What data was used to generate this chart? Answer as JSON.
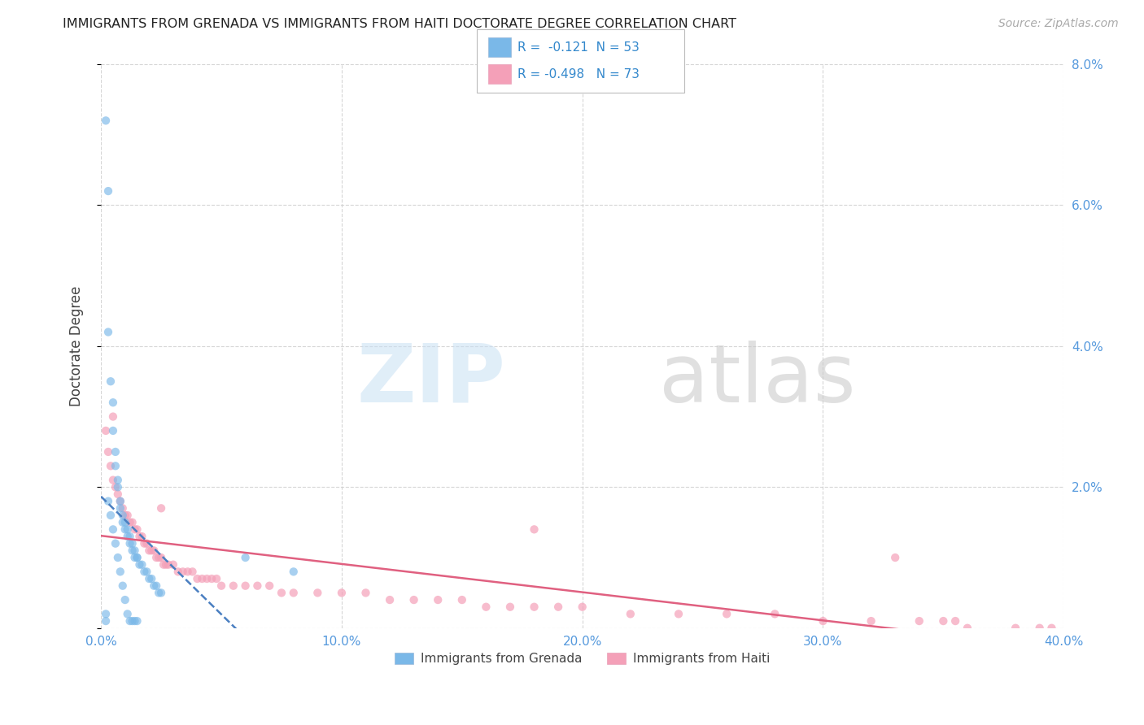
{
  "title": "IMMIGRANTS FROM GRENADA VS IMMIGRANTS FROM HAITI DOCTORATE DEGREE CORRELATION CHART",
  "source": "Source: ZipAtlas.com",
  "ylabel": "Doctorate Degree",
  "xlim": [
    0.0,
    40.0
  ],
  "ylim": [
    0.0,
    8.0
  ],
  "xticks": [
    0.0,
    10.0,
    20.0,
    30.0,
    40.0
  ],
  "yticks": [
    0.0,
    2.0,
    4.0,
    6.0,
    8.0
  ],
  "xtick_labels": [
    "0.0%",
    "10.0%",
    "20.0%",
    "30.0%",
    "40.0%"
  ],
  "ytick_labels": [
    "",
    "2.0%",
    "4.0%",
    "6.0%",
    "8.0%"
  ],
  "grenada_color": "#7ab8e8",
  "haiti_color": "#f4a0b8",
  "grenada_line_color": "#4a7fc1",
  "haiti_line_color": "#e06080",
  "background_color": "#ffffff",
  "grid_color": "#cccccc",
  "grenada_R": -0.121,
  "grenada_N": 53,
  "haiti_R": -0.498,
  "haiti_N": 73,
  "grenada_x": [
    0.2,
    0.3,
    0.3,
    0.4,
    0.5,
    0.5,
    0.6,
    0.6,
    0.7,
    0.7,
    0.8,
    0.8,
    0.9,
    0.9,
    1.0,
    1.0,
    1.1,
    1.1,
    1.2,
    1.2,
    1.3,
    1.3,
    1.4,
    1.4,
    1.5,
    1.5,
    1.6,
    1.7,
    1.8,
    1.9,
    2.0,
    2.1,
    2.2,
    2.3,
    2.4,
    2.5,
    0.3,
    0.4,
    0.5,
    0.6,
    0.7,
    0.8,
    0.9,
    1.0,
    1.1,
    1.2,
    1.3,
    1.4,
    1.5,
    6.0,
    8.0,
    0.2,
    0.2
  ],
  "grenada_y": [
    7.2,
    6.2,
    4.2,
    3.5,
    3.2,
    2.8,
    2.5,
    2.3,
    2.1,
    2.0,
    1.8,
    1.7,
    1.6,
    1.5,
    1.5,
    1.4,
    1.4,
    1.3,
    1.3,
    1.2,
    1.2,
    1.1,
    1.1,
    1.0,
    1.0,
    1.0,
    0.9,
    0.9,
    0.8,
    0.8,
    0.7,
    0.7,
    0.6,
    0.6,
    0.5,
    0.5,
    1.8,
    1.6,
    1.4,
    1.2,
    1.0,
    0.8,
    0.6,
    0.4,
    0.2,
    0.1,
    0.1,
    0.1,
    0.1,
    1.0,
    0.8,
    0.2,
    0.1
  ],
  "haiti_x": [
    0.2,
    0.3,
    0.4,
    0.5,
    0.6,
    0.7,
    0.8,
    0.9,
    1.0,
    1.1,
    1.2,
    1.3,
    1.4,
    1.5,
    1.6,
    1.7,
    1.8,
    1.9,
    2.0,
    2.1,
    2.2,
    2.3,
    2.4,
    2.5,
    2.6,
    2.7,
    2.8,
    3.0,
    3.2,
    3.4,
    3.6,
    3.8,
    4.0,
    4.2,
    4.4,
    4.6,
    4.8,
    5.0,
    5.5,
    6.0,
    6.5,
    7.0,
    7.5,
    8.0,
    9.0,
    10.0,
    11.0,
    12.0,
    13.0,
    14.0,
    15.0,
    16.0,
    17.0,
    18.0,
    19.0,
    20.0,
    22.0,
    24.0,
    26.0,
    28.0,
    30.0,
    32.0,
    34.0,
    35.0,
    35.5,
    36.0,
    38.0,
    39.0,
    39.5,
    0.5,
    2.5,
    18.0,
    33.0
  ],
  "haiti_y": [
    2.8,
    2.5,
    2.3,
    2.1,
    2.0,
    1.9,
    1.8,
    1.7,
    1.6,
    1.6,
    1.5,
    1.5,
    1.4,
    1.4,
    1.3,
    1.3,
    1.2,
    1.2,
    1.1,
    1.1,
    1.1,
    1.0,
    1.0,
    1.0,
    0.9,
    0.9,
    0.9,
    0.9,
    0.8,
    0.8,
    0.8,
    0.8,
    0.7,
    0.7,
    0.7,
    0.7,
    0.7,
    0.6,
    0.6,
    0.6,
    0.6,
    0.6,
    0.5,
    0.5,
    0.5,
    0.5,
    0.5,
    0.4,
    0.4,
    0.4,
    0.4,
    0.3,
    0.3,
    0.3,
    0.3,
    0.3,
    0.2,
    0.2,
    0.2,
    0.2,
    0.1,
    0.1,
    0.1,
    0.1,
    0.1,
    0.0,
    0.0,
    0.0,
    0.0,
    3.0,
    1.7,
    1.4,
    1.0
  ]
}
